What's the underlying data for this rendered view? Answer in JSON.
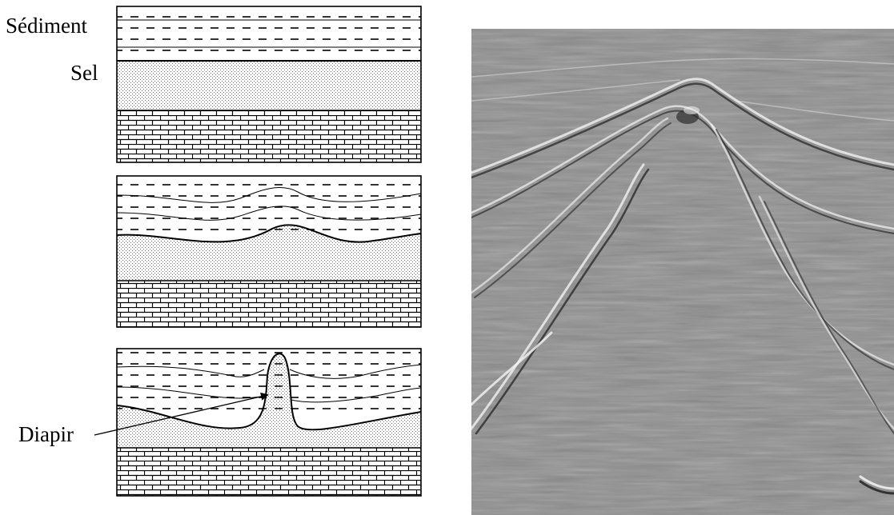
{
  "labels": {
    "sediment": "Sédiment",
    "salt": "Sel",
    "diapir": "Diapir"
  },
  "colors": {
    "line": "#000000",
    "salt_dots": "#6e6e6e",
    "seismic_bg": "#8e8e8e"
  },
  "panels": [
    {
      "stage": "flat-layers"
    },
    {
      "stage": "salt-swell"
    },
    {
      "stage": "diapir"
    }
  ],
  "icons": [
    "sediment-dash-pattern",
    "salt-dot-pattern",
    "limestone-brick-pattern",
    "arrow"
  ]
}
